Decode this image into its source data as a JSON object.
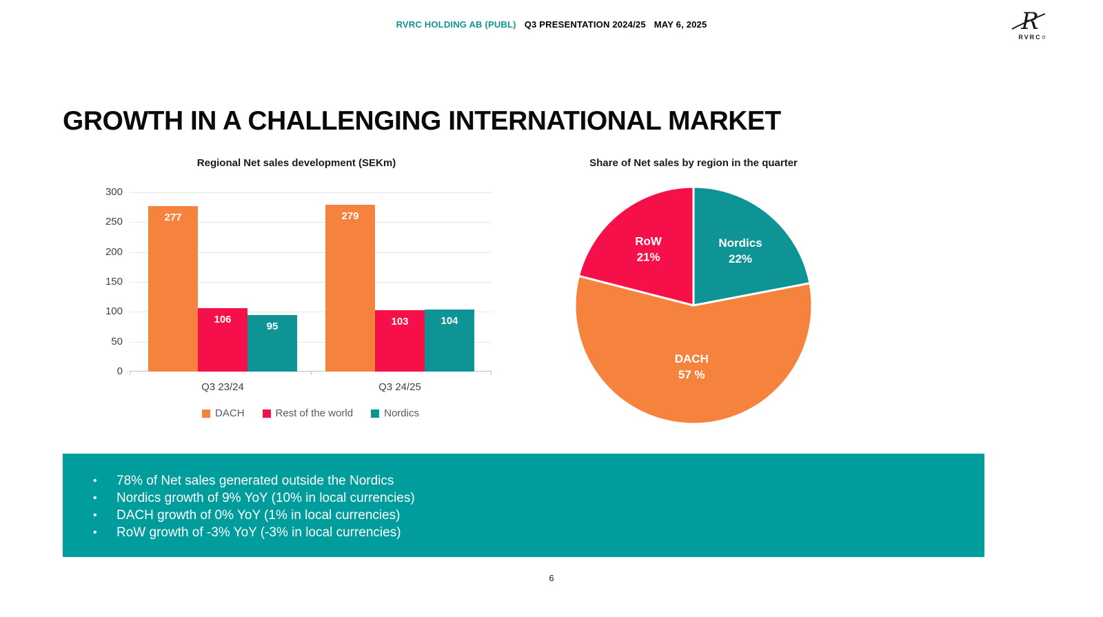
{
  "header": {
    "company": "RVRC HOLDING AB (PUBL)",
    "presentation": "Q3 PRESENTATION 2024/25",
    "date": "MAY 6, 2025",
    "logo_mark": "R",
    "logo_text": "RVRC"
  },
  "title": "GROWTH IN A CHALLENGING INTERNATIONAL MARKET",
  "colors": {
    "teal": "#0E9494",
    "orange": "#F6833D",
    "red": "#F5104A",
    "banner_teal": "#019C9C"
  },
  "chart_data": [
    {
      "type": "bar",
      "title": "Regional Net sales development (SEKm)",
      "categories": [
        "Q3 23/24",
        "Q3 24/25"
      ],
      "series": [
        {
          "name": "DACH",
          "color": "#F6833D",
          "values": [
            277,
            279
          ]
        },
        {
          "name": "Rest of the world",
          "color": "#F5104A",
          "values": [
            106,
            103
          ]
        },
        {
          "name": "Nordics",
          "color": "#0E9494",
          "values": [
            95,
            104
          ]
        }
      ],
      "ylim": [
        0,
        300
      ],
      "yticks": [
        0,
        50,
        100,
        150,
        200,
        250,
        300
      ],
      "grid": true,
      "legend_position": "bottom"
    },
    {
      "type": "pie",
      "title": "Share of Net sales by region in the quarter",
      "start_angle_deg": -90,
      "direction": "clockwise",
      "slices": [
        {
          "name": "Nordics",
          "value": 22,
          "label_lines": [
            "Nordics",
            "22%"
          ],
          "color": "#0E9494"
        },
        {
          "name": "DACH",
          "value": 57,
          "label_lines": [
            "DACH",
            "57 %"
          ],
          "color": "#F6833D"
        },
        {
          "name": "RoW",
          "value": 21,
          "label_lines": [
            "RoW",
            "21%"
          ],
          "color": "#F5104A"
        }
      ]
    }
  ],
  "banner": {
    "bullets": [
      "78% of Net sales generated outside the Nordics",
      "Nordics growth of 9% YoY (10% in local currencies)",
      "DACH growth of 0% YoY (1% in local currencies)",
      "RoW growth of -3% YoY (-3% in local currencies)"
    ]
  },
  "page_number": "6"
}
